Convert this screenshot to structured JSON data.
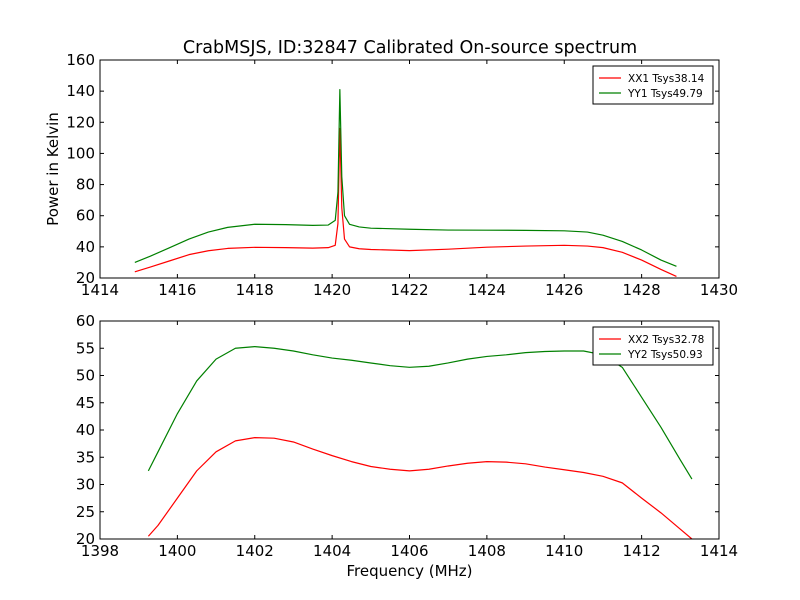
{
  "figure": {
    "title": "CrabMSJS, ID:32847 Calibrated On-source spectrum"
  },
  "chart_data": [
    {
      "type": "line",
      "title": "CrabMSJS, ID:32847 Calibrated On-source spectrum",
      "xlabel": "",
      "ylabel": "Power in Kelvin",
      "xlim": [
        1414,
        1430
      ],
      "ylim": [
        20,
        160
      ],
      "xticks": [
        "1414",
        "1416",
        "1418",
        "1420",
        "1422",
        "1424",
        "1426",
        "1428",
        "1430"
      ],
      "yticks": [
        "20",
        "40",
        "60",
        "80",
        "100",
        "120",
        "140",
        "160"
      ],
      "legend_position": "top-right",
      "grid": false,
      "series": [
        {
          "name": "XX1 Tsys38.14",
          "color": "#ff0000",
          "x": [
            1414.9,
            1415.3,
            1415.8,
            1416.3,
            1416.8,
            1417.3,
            1418.0,
            1418.8,
            1419.5,
            1419.9,
            1420.08,
            1420.15,
            1420.2,
            1420.25,
            1420.32,
            1420.45,
            1420.7,
            1421.0,
            1422.0,
            1423.0,
            1424.0,
            1425.0,
            1426.0,
            1426.6,
            1427.0,
            1427.5,
            1428.0,
            1428.5,
            1428.9
          ],
          "y": [
            24,
            27,
            31,
            35,
            37.5,
            39,
            39.7,
            39.5,
            39.2,
            39.5,
            41,
            55,
            116,
            65,
            45,
            40,
            38.8,
            38.3,
            37.6,
            38.5,
            39.8,
            40.5,
            41,
            40.5,
            39.5,
            36.5,
            31.5,
            25.5,
            21
          ]
        },
        {
          "name": "YY1 Tsys49.79",
          "color": "#008000",
          "x": [
            1414.9,
            1415.3,
            1415.8,
            1416.3,
            1416.8,
            1417.3,
            1418.0,
            1418.8,
            1419.5,
            1419.9,
            1420.08,
            1420.15,
            1420.2,
            1420.25,
            1420.32,
            1420.45,
            1420.7,
            1421.0,
            1422.0,
            1423.0,
            1424.0,
            1425.0,
            1426.0,
            1426.6,
            1427.0,
            1427.5,
            1428.0,
            1428.5,
            1428.9
          ],
          "y": [
            30,
            34,
            39.5,
            45,
            49.5,
            52.5,
            54.5,
            54.3,
            53.8,
            54,
            57,
            75,
            141,
            85,
            60,
            54.5,
            52.8,
            52,
            51.3,
            50.8,
            50.7,
            50.6,
            50.3,
            49.5,
            47.5,
            43.5,
            38,
            31.5,
            27.5
          ]
        }
      ]
    },
    {
      "type": "line",
      "title": "",
      "xlabel": "Frequency (MHz)",
      "ylabel": "",
      "xlim": [
        1398,
        1414
      ],
      "ylim": [
        20,
        60
      ],
      "xticks": [
        "1398",
        "1400",
        "1402",
        "1404",
        "1406",
        "1408",
        "1410",
        "1412",
        "1414"
      ],
      "yticks": [
        "20",
        "25",
        "30",
        "35",
        "40",
        "45",
        "50",
        "55",
        "60"
      ],
      "legend_position": "top-right",
      "grid": false,
      "series": [
        {
          "name": "XX2 Tsys32.78",
          "color": "#ff0000",
          "x": [
            1399.25,
            1399.5,
            1400.0,
            1400.5,
            1401.0,
            1401.5,
            1402.0,
            1402.5,
            1403.0,
            1403.5,
            1404.0,
            1404.5,
            1405.0,
            1405.5,
            1406.0,
            1406.5,
            1407.0,
            1407.5,
            1408.0,
            1408.5,
            1409.0,
            1409.5,
            1410.0,
            1410.5,
            1411.0,
            1411.5,
            1412.0,
            1412.5,
            1413.0,
            1413.3
          ],
          "y": [
            20.5,
            22.5,
            27.5,
            32.5,
            36,
            38,
            38.6,
            38.5,
            37.8,
            36.5,
            35.3,
            34.2,
            33.3,
            32.8,
            32.5,
            32.8,
            33.4,
            33.9,
            34.2,
            34.1,
            33.8,
            33.2,
            32.7,
            32.2,
            31.5,
            30.3,
            27.5,
            24.8,
            21.8,
            20
          ]
        },
        {
          "name": "YY2 Tsys50.93",
          "color": "#008000",
          "x": [
            1399.25,
            1399.5,
            1400.0,
            1400.5,
            1401.0,
            1401.5,
            1402.0,
            1402.5,
            1403.0,
            1403.5,
            1404.0,
            1404.5,
            1405.0,
            1405.5,
            1406.0,
            1406.5,
            1407.0,
            1407.5,
            1408.0,
            1408.5,
            1409.0,
            1409.5,
            1410.0,
            1410.5,
            1411.0,
            1411.5,
            1412.0,
            1412.5,
            1413.0,
            1413.3
          ],
          "y": [
            32.5,
            36,
            43,
            49,
            53,
            55,
            55.3,
            55,
            54.5,
            53.8,
            53.2,
            52.8,
            52.3,
            51.8,
            51.5,
            51.7,
            52.3,
            53,
            53.5,
            53.8,
            54.2,
            54.4,
            54.5,
            54.5,
            53.8,
            51.5,
            46,
            40.5,
            34.5,
            31
          ]
        }
      ]
    }
  ]
}
